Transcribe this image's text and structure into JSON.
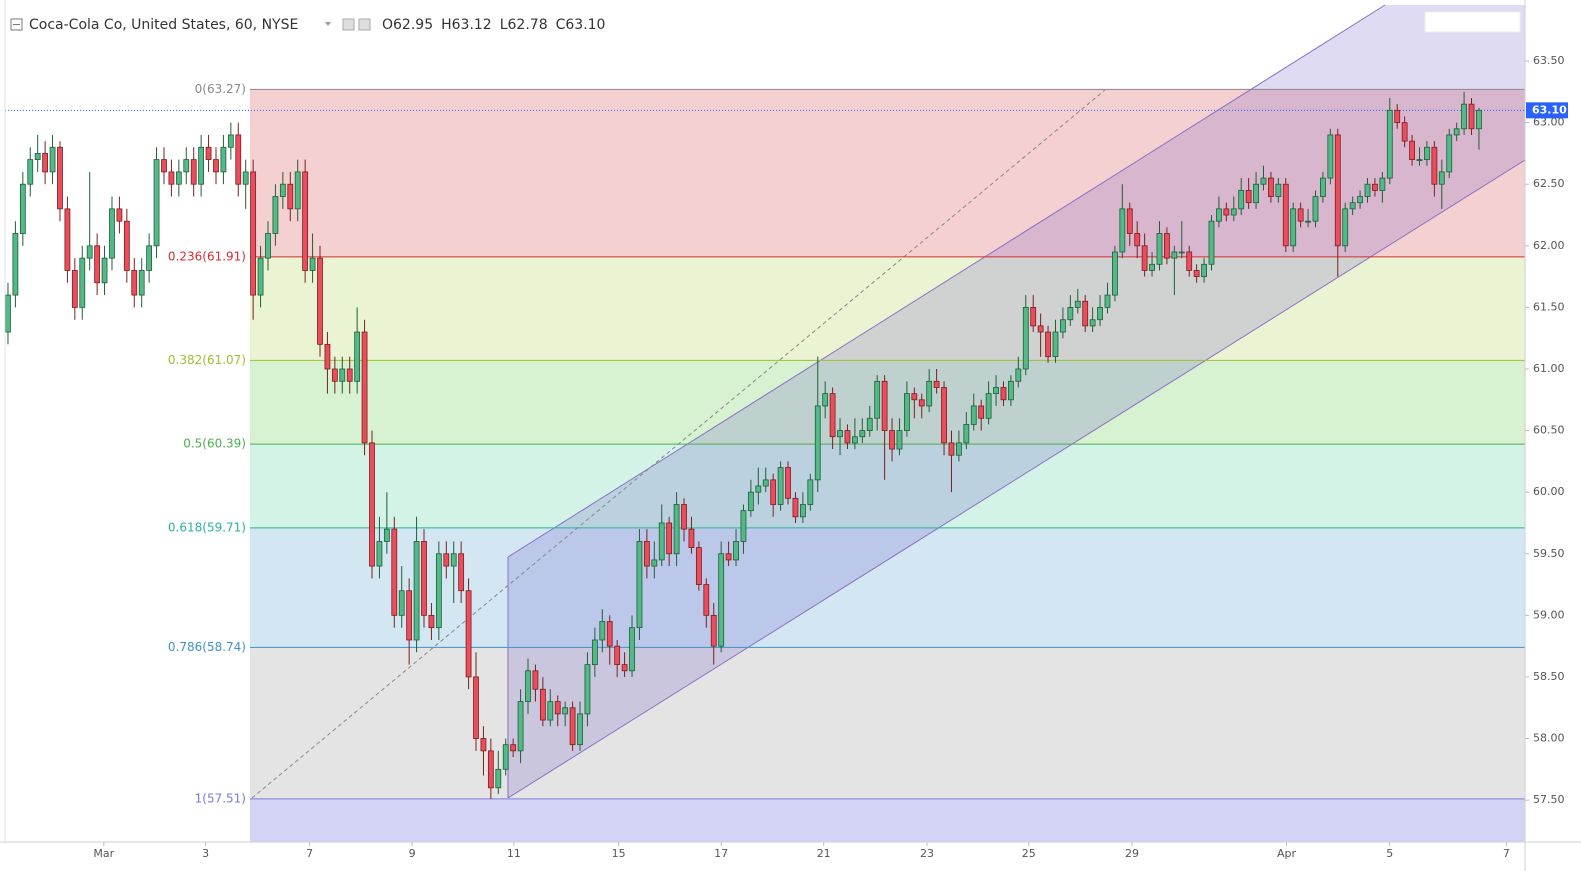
{
  "header": {
    "title": "Coca-Cola Co, United States, 60, NYSE",
    "ohlc": [
      "O62.95",
      "H63.12",
      "L62.78",
      "C63.10"
    ]
  },
  "chart_data": {
    "type": "candlestick",
    "xlim": [
      -0.4,
      204.2
    ],
    "ylim": [
      57.16,
      63.955
    ],
    "xticks": [
      {
        "value": 12.9,
        "label": "Mar"
      },
      {
        "value": 26.6,
        "label": "3"
      },
      {
        "value": 40.6,
        "label": "7"
      },
      {
        "value": 54.4,
        "label": "9"
      },
      {
        "value": 68.1,
        "label": "11"
      },
      {
        "value": 82.2,
        "label": "15"
      },
      {
        "value": 96,
        "label": "17"
      },
      {
        "value": 109.8,
        "label": "21"
      },
      {
        "value": 123.7,
        "label": "23"
      },
      {
        "value": 137.4,
        "label": "25"
      },
      {
        "value": 151.3,
        "label": "29"
      },
      {
        "value": 172.1,
        "label": "Apr"
      },
      {
        "value": 186,
        "label": "5"
      },
      {
        "value": 201.7,
        "label": "7"
      }
    ],
    "yticks": [
      {
        "value": 57.5,
        "label": "57.50"
      },
      {
        "value": 58,
        "label": "58.00"
      },
      {
        "value": 58.5,
        "label": "58.50"
      },
      {
        "value": 59,
        "label": "59.00"
      },
      {
        "value": 59.5,
        "label": "59.50"
      },
      {
        "value": 60,
        "label": "60.00"
      },
      {
        "value": 60.5,
        "label": "60.50"
      },
      {
        "value": 61,
        "label": "61.00"
      },
      {
        "value": 61.5,
        "label": "61.50"
      },
      {
        "value": 62,
        "label": "62.00"
      },
      {
        "value": 62.5,
        "label": "62.50"
      },
      {
        "value": 63,
        "label": "63.00"
      },
      {
        "value": 63.5,
        "label": "63.50"
      }
    ],
    "grid": false,
    "up_color": "#53b987",
    "down_color": "#eb4d5c",
    "last_price": {
      "value": 63.1,
      "label": "63.10"
    },
    "fib_levels": [
      {
        "label": "0(63.27)",
        "price": 63.27,
        "color": "#8a8a8a",
        "fill": "#f5d0d0"
      },
      {
        "label": "0.236(61.91)",
        "price": 61.91,
        "color": "#d32f2f",
        "fill": "#ebf4d2"
      },
      {
        "label": "0.382(61.07)",
        "price": 61.07,
        "color": "#a0c030",
        "fill": "#d6f2d0"
      },
      {
        "label": "0.5(60.39)",
        "price": 60.39,
        "color": "#4caf50",
        "fill": "#d2f3e6"
      },
      {
        "label": "0.618(59.71)",
        "price": 59.71,
        "color": "#26b59a",
        "fill": "#d3e7f3"
      },
      {
        "label": "0.786(58.74)",
        "price": 58.74,
        "color": "#3d94c6",
        "fill": "#e4e4e4"
      },
      {
        "label": "1(57.51)",
        "price": 57.51,
        "color": "#7b7bd6",
        "fill": "#d3d3f6"
      }
    ],
    "candles": [
      [
        61.3,
        61.7,
        61.2,
        61.6
      ],
      [
        61.6,
        62.2,
        61.5,
        62.1
      ],
      [
        62.1,
        62.6,
        62.0,
        62.5
      ],
      [
        62.5,
        62.8,
        62.4,
        62.7
      ],
      [
        62.7,
        62.9,
        62.6,
        62.75
      ],
      [
        62.75,
        62.85,
        62.5,
        62.6
      ],
      [
        62.6,
        62.9,
        62.5,
        62.8
      ],
      [
        62.8,
        62.85,
        62.2,
        62.3
      ],
      [
        62.3,
        62.4,
        61.7,
        61.8
      ],
      [
        61.8,
        61.9,
        61.4,
        61.5
      ],
      [
        61.5,
        62.0,
        61.4,
        61.9
      ],
      [
        61.9,
        62.6,
        61.8,
        62.0
      ],
      [
        62.0,
        62.1,
        61.6,
        61.7
      ],
      [
        61.7,
        62.0,
        61.6,
        61.9
      ],
      [
        61.9,
        62.4,
        61.8,
        62.3
      ],
      [
        62.3,
        62.4,
        62.1,
        62.2
      ],
      [
        62.2,
        62.3,
        61.7,
        61.8
      ],
      [
        61.8,
        61.9,
        61.5,
        61.6
      ],
      [
        61.6,
        61.9,
        61.5,
        61.8
      ],
      [
        61.8,
        62.1,
        61.7,
        62.0
      ],
      [
        62.0,
        62.8,
        61.9,
        62.7
      ],
      [
        62.7,
        62.8,
        62.5,
        62.6
      ],
      [
        62.6,
        62.7,
        62.4,
        62.5
      ],
      [
        62.5,
        62.7,
        62.4,
        62.6
      ],
      [
        62.6,
        62.8,
        62.5,
        62.7
      ],
      [
        62.7,
        62.8,
        62.4,
        62.5
      ],
      [
        62.5,
        62.9,
        62.4,
        62.8
      ],
      [
        62.8,
        62.9,
        62.6,
        62.7
      ],
      [
        62.7,
        62.8,
        62.5,
        62.6
      ],
      [
        62.6,
        62.9,
        62.5,
        62.8
      ],
      [
        62.8,
        63.0,
        62.7,
        62.9
      ],
      [
        62.9,
        63.0,
        62.4,
        62.5
      ],
      [
        62.5,
        62.7,
        62.3,
        62.6
      ],
      [
        62.6,
        62.7,
        61.4,
        61.6
      ],
      [
        61.6,
        62.0,
        61.5,
        61.9
      ],
      [
        61.9,
        62.2,
        61.8,
        62.1
      ],
      [
        62.1,
        62.5,
        62.0,
        62.4
      ],
      [
        62.4,
        62.6,
        62.3,
        62.5
      ],
      [
        62.5,
        62.6,
        62.2,
        62.3
      ],
      [
        62.3,
        62.7,
        62.2,
        62.6
      ],
      [
        62.6,
        62.7,
        61.7,
        61.8
      ],
      [
        61.8,
        62.1,
        61.7,
        61.9
      ],
      [
        61.9,
        62.0,
        61.1,
        61.2
      ],
      [
        61.2,
        61.3,
        60.8,
        61.0
      ],
      [
        61.0,
        61.1,
        60.8,
        60.9
      ],
      [
        60.9,
        61.1,
        60.8,
        61.0
      ],
      [
        61.0,
        61.1,
        60.8,
        60.9
      ],
      [
        60.9,
        61.5,
        60.8,
        61.3
      ],
      [
        61.3,
        61.4,
        60.3,
        60.4
      ],
      [
        60.4,
        60.5,
        59.3,
        59.4
      ],
      [
        59.4,
        59.8,
        59.3,
        59.6
      ],
      [
        59.6,
        60.0,
        59.5,
        59.7
      ],
      [
        59.7,
        59.8,
        58.9,
        59.0
      ],
      [
        59.0,
        59.4,
        58.9,
        59.2
      ],
      [
        59.2,
        59.3,
        58.6,
        58.8
      ],
      [
        58.8,
        59.8,
        58.7,
        59.6
      ],
      [
        59.6,
        59.7,
        58.9,
        59.0
      ],
      [
        59.0,
        59.1,
        58.8,
        58.9
      ],
      [
        58.9,
        59.6,
        58.8,
        59.5
      ],
      [
        59.5,
        59.6,
        59.3,
        59.4
      ],
      [
        59.4,
        59.6,
        59.1,
        59.5
      ],
      [
        59.5,
        59.6,
        59.1,
        59.2
      ],
      [
        59.2,
        59.3,
        58.4,
        58.5
      ],
      [
        58.5,
        58.7,
        57.9,
        58.0
      ],
      [
        58.0,
        58.1,
        57.7,
        57.9
      ],
      [
        57.9,
        58.0,
        57.51,
        57.6
      ],
      [
        57.6,
        57.9,
        57.55,
        57.75
      ],
      [
        57.75,
        58.0,
        57.7,
        57.95
      ],
      [
        57.95,
        58.0,
        57.85,
        57.9
      ],
      [
        57.9,
        58.4,
        57.8,
        58.3
      ],
      [
        58.3,
        58.65,
        58.2,
        58.55
      ],
      [
        58.55,
        58.6,
        58.3,
        58.4
      ],
      [
        58.4,
        58.5,
        58.1,
        58.15
      ],
      [
        58.15,
        58.4,
        58.1,
        58.3
      ],
      [
        58.3,
        58.35,
        58.1,
        58.2
      ],
      [
        58.2,
        58.3,
        58.1,
        58.25
      ],
      [
        58.25,
        58.3,
        57.9,
        57.95
      ],
      [
        57.95,
        58.3,
        57.9,
        58.2
      ],
      [
        58.2,
        58.7,
        58.1,
        58.6
      ],
      [
        58.6,
        58.9,
        58.5,
        58.8
      ],
      [
        58.8,
        59.05,
        58.7,
        58.95
      ],
      [
        58.95,
        59.0,
        58.6,
        58.75
      ],
      [
        58.75,
        58.8,
        58.5,
        58.6
      ],
      [
        58.6,
        58.7,
        58.5,
        58.55
      ],
      [
        58.55,
        59.0,
        58.5,
        58.9
      ],
      [
        58.9,
        59.7,
        58.8,
        59.6
      ],
      [
        59.6,
        59.7,
        59.3,
        59.4
      ],
      [
        59.4,
        59.6,
        59.3,
        59.45
      ],
      [
        59.45,
        59.9,
        59.4,
        59.75
      ],
      [
        59.75,
        59.8,
        59.4,
        59.5
      ],
      [
        59.5,
        60.0,
        59.4,
        59.9
      ],
      [
        59.9,
        59.95,
        59.6,
        59.7
      ],
      [
        59.7,
        59.8,
        59.5,
        59.55
      ],
      [
        59.55,
        59.6,
        59.2,
        59.25
      ],
      [
        59.25,
        59.3,
        58.9,
        59.0
      ],
      [
        59.0,
        59.1,
        58.6,
        58.75
      ],
      [
        58.75,
        59.6,
        58.7,
        59.5
      ],
      [
        59.5,
        59.6,
        59.4,
        59.45
      ],
      [
        59.45,
        59.7,
        59.4,
        59.6
      ],
      [
        59.6,
        59.9,
        59.5,
        59.85
      ],
      [
        59.85,
        60.1,
        59.8,
        60.0
      ],
      [
        60.0,
        60.2,
        59.9,
        60.05
      ],
      [
        60.05,
        60.2,
        60.0,
        60.1
      ],
      [
        60.1,
        60.15,
        59.8,
        59.9
      ],
      [
        59.9,
        60.25,
        59.85,
        60.2
      ],
      [
        60.2,
        60.25,
        59.9,
        59.95
      ],
      [
        59.95,
        60.0,
        59.75,
        59.8
      ],
      [
        59.8,
        60.0,
        59.75,
        59.9
      ],
      [
        59.9,
        60.15,
        59.85,
        60.1
      ],
      [
        60.1,
        61.1,
        60.0,
        60.7
      ],
      [
        60.7,
        60.9,
        60.6,
        60.8
      ],
      [
        60.8,
        60.85,
        60.35,
        60.45
      ],
      [
        60.45,
        60.6,
        60.3,
        60.5
      ],
      [
        60.5,
        60.55,
        60.35,
        60.4
      ],
      [
        60.4,
        60.6,
        60.35,
        60.45
      ],
      [
        60.45,
        60.6,
        60.4,
        60.5
      ],
      [
        60.5,
        60.7,
        60.45,
        60.6
      ],
      [
        60.6,
        60.95,
        60.5,
        60.9
      ],
      [
        60.9,
        60.95,
        60.1,
        60.5
      ],
      [
        60.5,
        60.6,
        60.25,
        60.35
      ],
      [
        60.35,
        60.6,
        60.3,
        60.5
      ],
      [
        60.5,
        60.9,
        60.45,
        60.8
      ],
      [
        60.8,
        60.85,
        60.6,
        60.75
      ],
      [
        60.75,
        60.8,
        60.6,
        60.7
      ],
      [
        60.7,
        61.0,
        60.65,
        60.9
      ],
      [
        60.9,
        61.0,
        60.8,
        60.85
      ],
      [
        60.85,
        60.9,
        60.3,
        60.4
      ],
      [
        60.4,
        60.5,
        60.0,
        60.3
      ],
      [
        60.3,
        60.5,
        60.25,
        60.4
      ],
      [
        60.4,
        60.65,
        60.35,
        60.55
      ],
      [
        60.55,
        60.8,
        60.5,
        60.7
      ],
      [
        60.7,
        60.75,
        60.5,
        60.6
      ],
      [
        60.6,
        60.9,
        60.55,
        60.8
      ],
      [
        60.8,
        60.95,
        60.7,
        60.85
      ],
      [
        60.85,
        60.9,
        60.7,
        60.75
      ],
      [
        60.75,
        60.95,
        60.7,
        60.9
      ],
      [
        60.9,
        61.1,
        60.85,
        61.0
      ],
      [
        61.0,
        61.6,
        60.95,
        61.5
      ],
      [
        61.5,
        61.6,
        61.3,
        61.35
      ],
      [
        61.35,
        61.45,
        61.1,
        61.3
      ],
      [
        61.3,
        61.35,
        61.05,
        61.1
      ],
      [
        61.1,
        61.4,
        61.05,
        61.3
      ],
      [
        61.3,
        61.5,
        61.25,
        61.4
      ],
      [
        61.4,
        61.6,
        61.35,
        61.5
      ],
      [
        61.5,
        61.65,
        61.45,
        61.55
      ],
      [
        61.55,
        61.6,
        61.3,
        61.35
      ],
      [
        61.35,
        61.5,
        61.3,
        61.4
      ],
      [
        61.4,
        61.6,
        61.35,
        61.5
      ],
      [
        61.5,
        61.7,
        61.45,
        61.6
      ],
      [
        61.6,
        62.0,
        61.55,
        61.95
      ],
      [
        61.95,
        62.5,
        61.9,
        62.3
      ],
      [
        62.3,
        62.35,
        62.0,
        62.1
      ],
      [
        62.1,
        62.2,
        61.9,
        62.0
      ],
      [
        62.0,
        62.1,
        61.75,
        61.8
      ],
      [
        61.8,
        61.95,
        61.75,
        61.85
      ],
      [
        61.85,
        62.2,
        61.8,
        62.1
      ],
      [
        62.1,
        62.15,
        61.85,
        61.9
      ],
      [
        61.9,
        62.0,
        61.6,
        61.95
      ],
      [
        61.95,
        62.2,
        61.9,
        61.95
      ],
      [
        61.95,
        62.0,
        61.75,
        61.8
      ],
      [
        61.8,
        61.85,
        61.7,
        61.75
      ],
      [
        61.75,
        61.9,
        61.7,
        61.85
      ],
      [
        61.85,
        62.25,
        61.8,
        62.2
      ],
      [
        62.2,
        62.4,
        62.15,
        62.3
      ],
      [
        62.3,
        62.35,
        62.2,
        62.25
      ],
      [
        62.25,
        62.4,
        62.2,
        62.3
      ],
      [
        62.3,
        62.55,
        62.25,
        62.45
      ],
      [
        62.45,
        62.55,
        62.3,
        62.35
      ],
      [
        62.35,
        62.6,
        62.3,
        62.5
      ],
      [
        62.5,
        62.65,
        62.45,
        62.55
      ],
      [
        62.55,
        62.6,
        62.35,
        62.4
      ],
      [
        62.4,
        62.55,
        62.35,
        62.5
      ],
      [
        62.5,
        62.55,
        61.95,
        62.0
      ],
      [
        62.0,
        62.35,
        61.95,
        62.3
      ],
      [
        62.3,
        62.35,
        62.15,
        62.2
      ],
      [
        62.2,
        62.3,
        62.15,
        62.2
      ],
      [
        62.2,
        62.45,
        62.15,
        62.4
      ],
      [
        62.4,
        62.6,
        62.35,
        62.55
      ],
      [
        62.55,
        62.95,
        62.5,
        62.9
      ],
      [
        62.9,
        62.95,
        61.75,
        62.0
      ],
      [
        62.0,
        62.35,
        61.95,
        62.3
      ],
      [
        62.3,
        62.4,
        62.25,
        62.35
      ],
      [
        62.35,
        62.45,
        62.3,
        62.4
      ],
      [
        62.4,
        62.55,
        62.35,
        62.5
      ],
      [
        62.5,
        62.55,
        62.4,
        62.45
      ],
      [
        62.45,
        62.6,
        62.35,
        62.55
      ],
      [
        62.55,
        63.2,
        62.5,
        63.1
      ],
      [
        63.1,
        63.15,
        62.95,
        63.0
      ],
      [
        63.0,
        63.05,
        62.8,
        62.85
      ],
      [
        62.85,
        62.9,
        62.65,
        62.7
      ],
      [
        62.7,
        62.8,
        62.65,
        62.7
      ],
      [
        62.7,
        62.85,
        62.65,
        62.8
      ],
      [
        62.8,
        62.85,
        62.4,
        62.5
      ],
      [
        62.5,
        62.7,
        62.3,
        62.6
      ],
      [
        62.6,
        62.95,
        62.55,
        62.9
      ],
      [
        62.9,
        63.0,
        62.85,
        62.95
      ],
      [
        62.95,
        63.25,
        62.9,
        63.15
      ],
      [
        63.15,
        63.2,
        62.9,
        62.95
      ],
      [
        62.95,
        63.12,
        62.78,
        63.1
      ]
    ]
  }
}
